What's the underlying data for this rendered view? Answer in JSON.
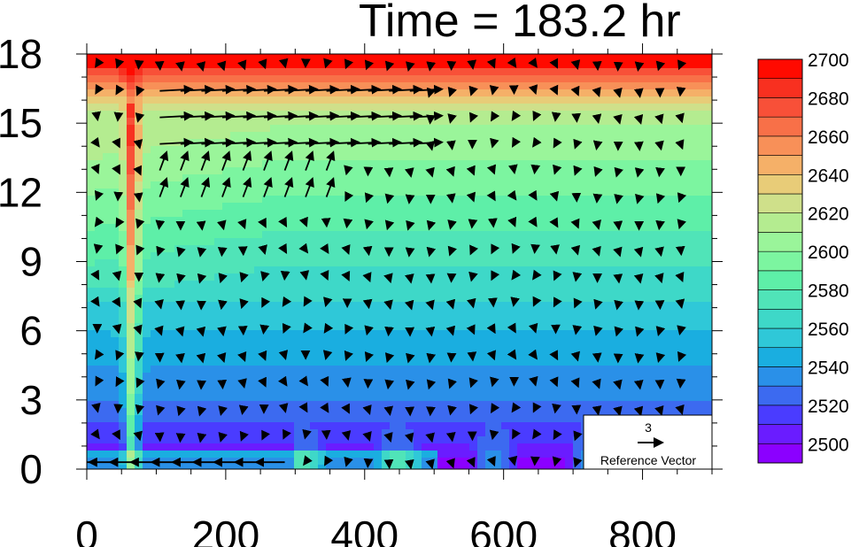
{
  "chart_data": {
    "type": "heatmap",
    "title": "Time = 183.2 hr",
    "xlabel": "",
    "ylabel": "",
    "x_range": [
      0,
      900
    ],
    "y_range": [
      0,
      18
    ],
    "x_ticks": [
      0,
      200,
      400,
      600,
      800
    ],
    "y_ticks": [
      0,
      3,
      6,
      9,
      12,
      15,
      18
    ],
    "colorbar": {
      "levels": [
        2500,
        2510,
        2520,
        2530,
        2540,
        2550,
        2560,
        2570,
        2580,
        2590,
        2600,
        2610,
        2620,
        2630,
        2640,
        2650,
        2660,
        2670,
        2680,
        2690,
        2700
      ],
      "labels": [
        "2500",
        "2520",
        "2540",
        "2560",
        "2580",
        "2600",
        "2620",
        "2640",
        "2660",
        "2680",
        "2700"
      ],
      "colors": [
        "#8b00ff",
        "#6a1cff",
        "#4a3cff",
        "#3c6af0",
        "#2a90e8",
        "#1aaee0",
        "#2fc8d8",
        "#3ed8c8",
        "#50e4b8",
        "#5eefa8",
        "#7cf5a0",
        "#9af59a",
        "#b4ec90",
        "#cfe08a",
        "#e8cc78",
        "#f5b068",
        "#f89058",
        "#f87048",
        "#f85038",
        "#f83020",
        "#ff0a00"
      ]
    },
    "reference_vector": {
      "value": "3",
      "label": "Reference Vector"
    }
  }
}
